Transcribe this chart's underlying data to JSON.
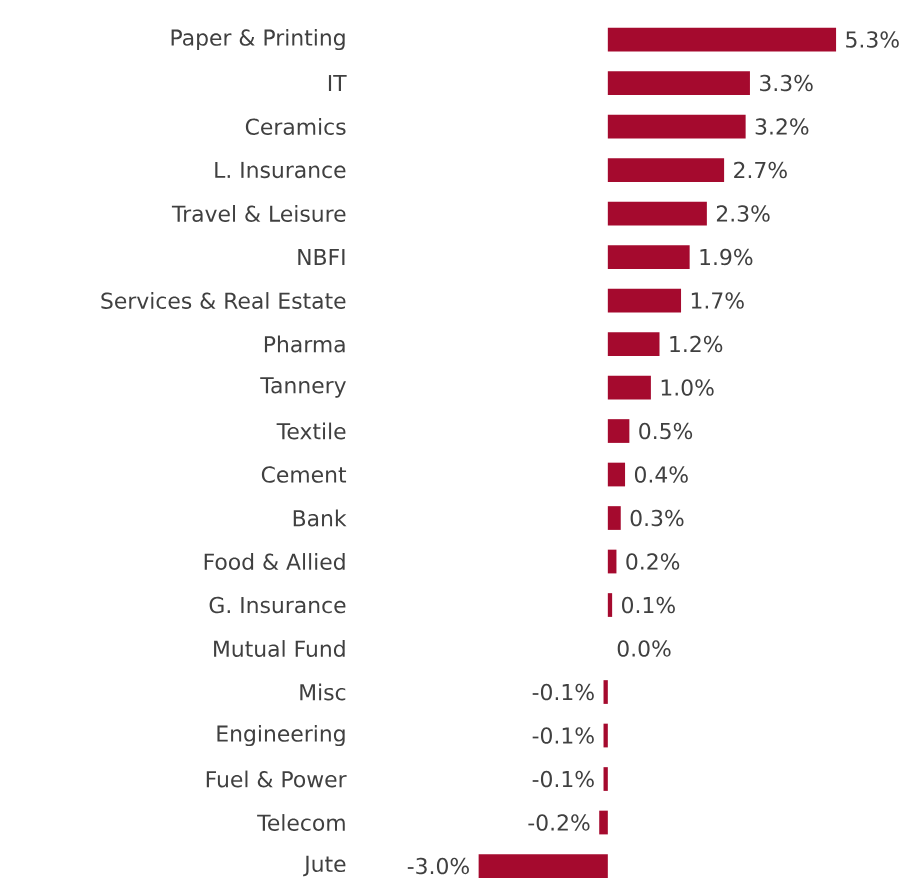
{
  "chart_data": {
    "type": "bar",
    "orientation": "horizontal",
    "color": "#a50a2e",
    "categories": [
      "Paper & Printing",
      "IT",
      "Ceramics",
      "L. Insurance",
      "Travel & Leisure",
      "NBFI",
      "Services & Real Estate",
      "Pharma",
      "Tannery",
      "Textile",
      "Cement",
      "Bank",
      "Food & Allied",
      "G. Insurance",
      "Mutual Fund",
      "Misc",
      "Engineering",
      "Fuel & Power",
      "Telecom",
      "Jute"
    ],
    "values": [
      5.3,
      3.3,
      3.2,
      2.7,
      2.3,
      1.9,
      1.7,
      1.2,
      1.0,
      0.5,
      0.4,
      0.3,
      0.2,
      0.1,
      0.0,
      -0.1,
      -0.1,
      -0.1,
      -0.2,
      -3.0
    ],
    "value_labels": [
      "5.3%",
      "3.3%",
      "3.2%",
      "2.7%",
      "2.3%",
      "1.9%",
      "1.7%",
      "1.2%",
      "1.0%",
      "0.5%",
      "0.4%",
      "0.3%",
      "0.2%",
      "0.1%",
      "0.0%",
      "-0.1%",
      "-0.1%",
      "-0.1%",
      "-0.2%",
      "-3.0%"
    ]
  }
}
